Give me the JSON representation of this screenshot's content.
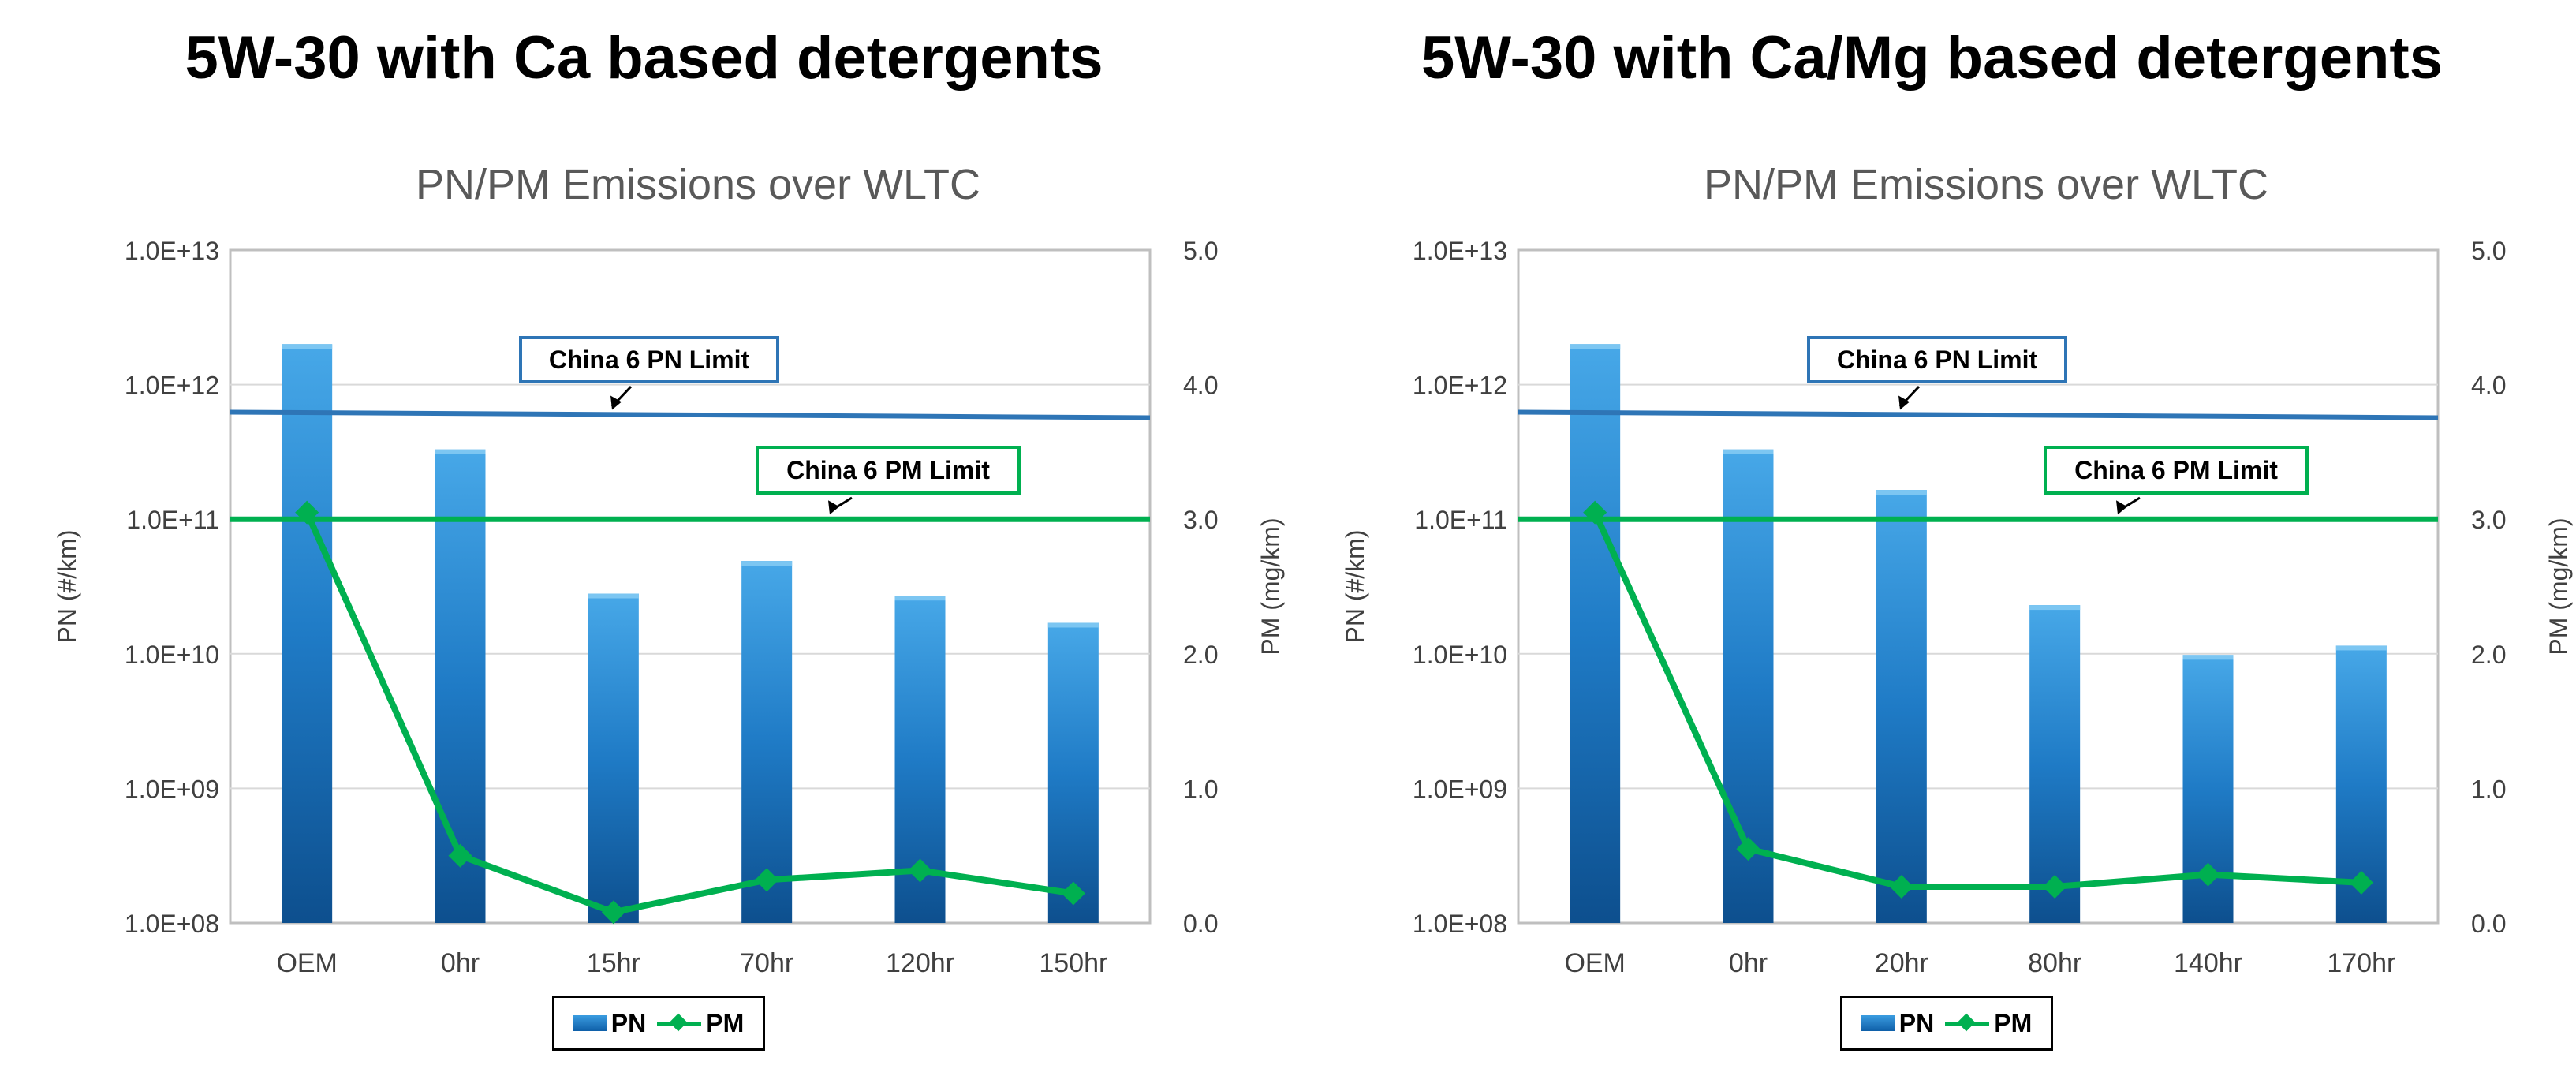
{
  "chart_data": [
    {
      "type": "bar+line",
      "panel_title": "5W-30 with Ca based detergents",
      "title": "PN/PM Emissions over WLTC",
      "categories": [
        "OEM",
        "0hr",
        "15hr",
        "70hr",
        "120hr",
        "150hr"
      ],
      "series": [
        {
          "name": "PN",
          "type": "bar",
          "axis": "left",
          "values": [
            2000000000000.0,
            330000000000.0,
            28000000000.0,
            49000000000.0,
            27000000000.0,
            17000000000.0
          ]
        },
        {
          "name": "PM",
          "type": "line",
          "axis": "right",
          "values": [
            3.05,
            0.5,
            0.08,
            0.32,
            0.39,
            0.22
          ]
        }
      ],
      "ylabel_left": "PN (#/km)",
      "ylabel_right": "PM (mg/km)",
      "y_left": {
        "scale": "log",
        "min": 100000000.0,
        "max": 10000000000000.0,
        "ticks": [
          "1.0E+08",
          "1.0E+09",
          "1.0E+10",
          "1.0E+11",
          "1.0E+12",
          "1.0E+13"
        ]
      },
      "y_right": {
        "scale": "linear",
        "min": 0,
        "max": 5,
        "ticks": [
          "0.0",
          "1.0",
          "2.0",
          "3.0",
          "4.0",
          "5.0"
        ]
      },
      "reference_lines": [
        {
          "label": "China 6 PN Limit",
          "axis": "left",
          "value": 600000000000.0,
          "color": "#2e75b6"
        },
        {
          "label": "China 6 PM Limit",
          "axis": "right",
          "value": 3.0,
          "color": "#00b050"
        }
      ],
      "legend": [
        "PN",
        "PM"
      ]
    },
    {
      "type": "bar+line",
      "panel_title": "5W-30 with Ca/Mg based detergents",
      "title": "PN/PM Emissions over WLTC",
      "categories": [
        "OEM",
        "0hr",
        "20hr",
        "80hr",
        "140hr",
        "170hr"
      ],
      "series": [
        {
          "name": "PN",
          "type": "bar",
          "axis": "left",
          "values": [
            2000000000000.0,
            330000000000.0,
            165000000000.0,
            23000000000.0,
            9800000000.0,
            11500000000.0
          ]
        },
        {
          "name": "PM",
          "type": "line",
          "axis": "right",
          "values": [
            3.05,
            0.55,
            0.27,
            0.27,
            0.36,
            0.3
          ]
        }
      ],
      "ylabel_left": "PN (#/km)",
      "ylabel_right": "PM (mg/km)",
      "y_left": {
        "scale": "log",
        "min": 100000000.0,
        "max": 10000000000000.0,
        "ticks": [
          "1.0E+08",
          "1.0E+09",
          "1.0E+10",
          "1.0E+11",
          "1.0E+12",
          "1.0E+13"
        ]
      },
      "y_right": {
        "scale": "linear",
        "min": 0,
        "max": 5,
        "ticks": [
          "0.0",
          "1.0",
          "2.0",
          "3.0",
          "4.0",
          "5.0"
        ]
      },
      "reference_lines": [
        {
          "label": "China 6 PN Limit",
          "axis": "left",
          "value": 600000000000.0,
          "color": "#2e75b6"
        },
        {
          "label": "China 6 PM Limit",
          "axis": "right",
          "value": 3.0,
          "color": "#00b050"
        }
      ],
      "legend": [
        "PN",
        "PM"
      ]
    }
  ]
}
